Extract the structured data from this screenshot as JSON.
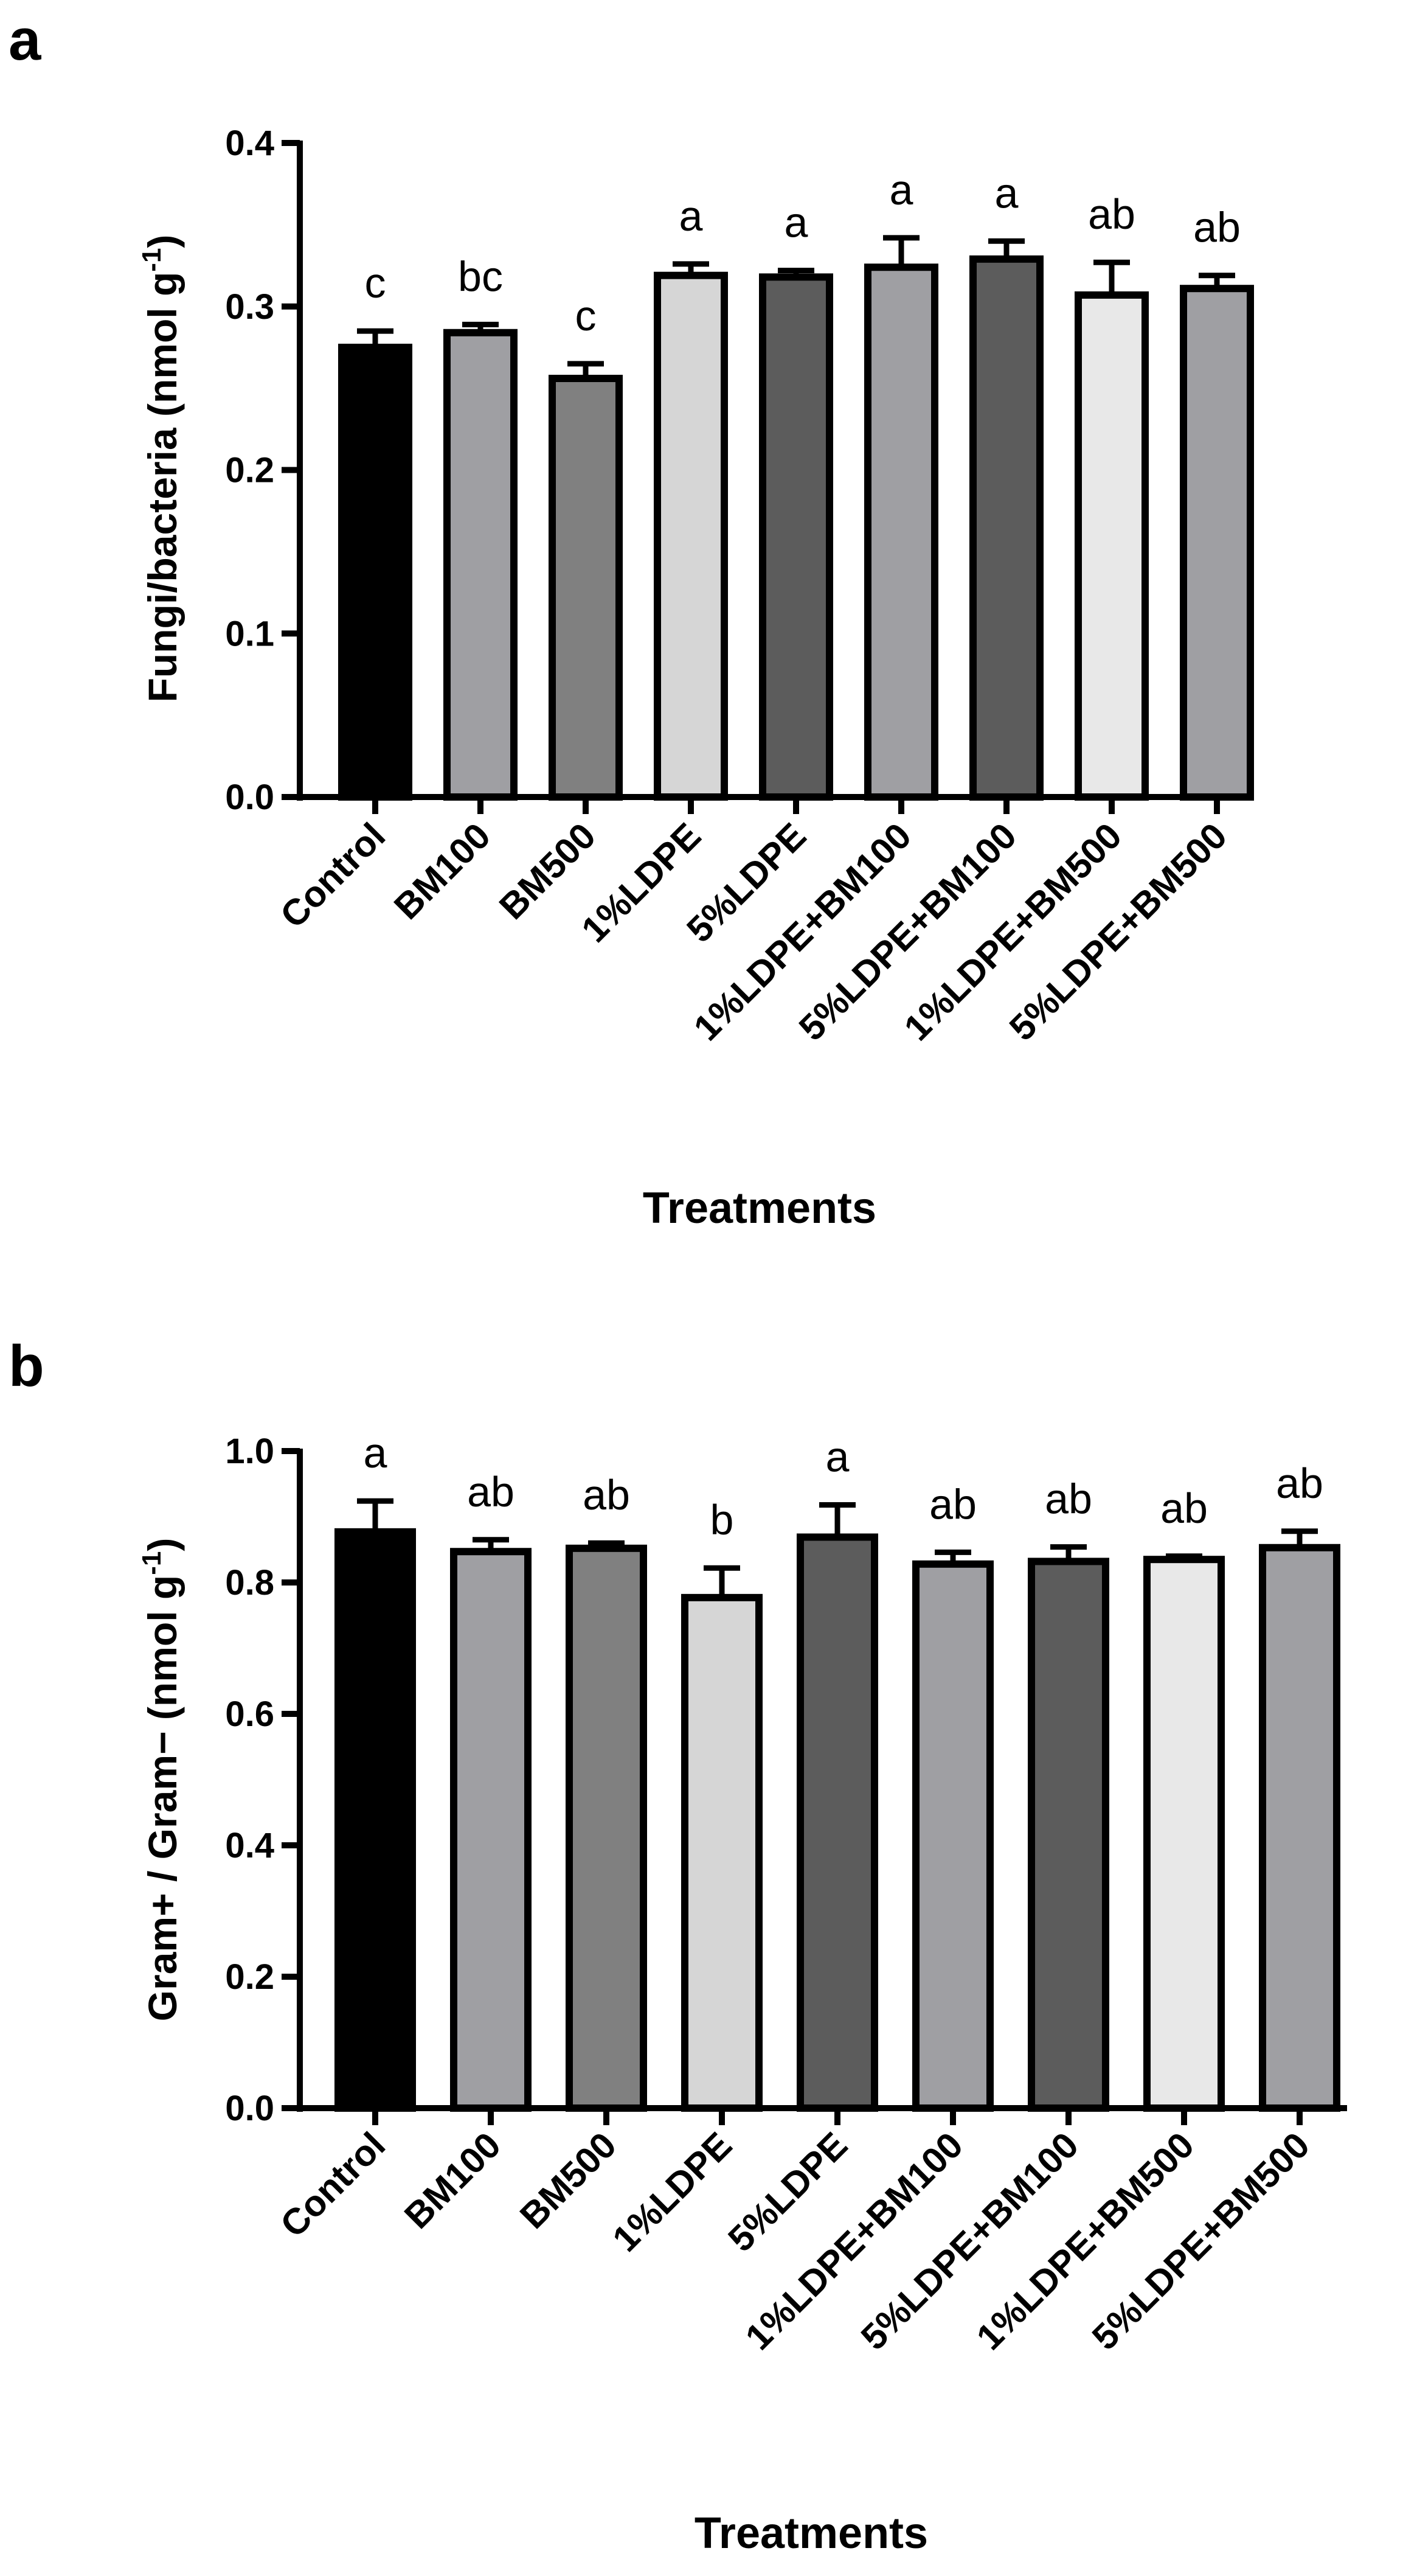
{
  "chart_data": [
    {
      "type": "bar",
      "panel": "a",
      "title": "",
      "xlabel": "Treatments",
      "ylabel": "Fungi/bacteria (nmol g",
      "ylabel_superscript": "-1",
      "ylabel_close": ")",
      "ylim": [
        0,
        0.4
      ],
      "yticks": [
        "0.0",
        "0.1",
        "0.2",
        "0.3",
        "0.4"
      ],
      "ytick_values": [
        0,
        0.1,
        0.2,
        0.3,
        0.4
      ],
      "categories": [
        "Control",
        "BM100",
        "BM500",
        "1%LDPE",
        "5%LDPE",
        "1%LDPE+BM100",
        "5%LDPE+BM100",
        "1%LDPE+BM500",
        "5%LDPE+BM500"
      ],
      "values": [
        0.275,
        0.284,
        0.256,
        0.319,
        0.318,
        0.324,
        0.329,
        0.307,
        0.311
      ],
      "errors": [
        0.01,
        0.005,
        0.009,
        0.007,
        0.004,
        0.018,
        0.011,
        0.02,
        0.008
      ],
      "significance": [
        "c",
        "bc",
        "c",
        "a",
        "a",
        "a",
        "a",
        "ab",
        "ab"
      ],
      "fills": [
        "#000000",
        "#9f9fa3",
        "#808080",
        "#d6d6d6",
        "#5c5c5c",
        "#9f9fa3",
        "#5c5c5c",
        "#e8e8e8",
        "#9f9fa3"
      ]
    },
    {
      "type": "bar",
      "panel": "b",
      "title": "",
      "xlabel": "Treatments",
      "ylabel": "Gram+ / Gram− (nmol g",
      "ylabel_superscript": "-1",
      "ylabel_close": ")",
      "ylim": [
        0,
        1.0
      ],
      "yticks": [
        "0.0",
        "0.2",
        "0.4",
        "0.6",
        "0.8",
        "1.0"
      ],
      "ytick_values": [
        0,
        0.2,
        0.4,
        0.6,
        0.8,
        1.0
      ],
      "categories": [
        "Control",
        "BM100",
        "BM500",
        "1%LDPE",
        "5%LDPE",
        "1%LDPE+BM100",
        "5%LDPE+BM100",
        "1%LDPE+BM500",
        "5%LDPE+BM500"
      ],
      "values": [
        0.877,
        0.847,
        0.852,
        0.777,
        0.869,
        0.828,
        0.832,
        0.835,
        0.853
      ],
      "errors": [
        0.047,
        0.018,
        0.008,
        0.045,
        0.049,
        0.018,
        0.022,
        0.005,
        0.025
      ],
      "significance": [
        "a",
        "ab",
        "ab",
        "b",
        "a",
        "ab",
        "ab",
        "ab",
        "ab"
      ],
      "fills": [
        "#000000",
        "#9f9fa3",
        "#808080",
        "#d6d6d6",
        "#5c5c5c",
        "#9f9fa3",
        "#5c5c5c",
        "#e8e8e8",
        "#9f9fa3"
      ]
    }
  ]
}
